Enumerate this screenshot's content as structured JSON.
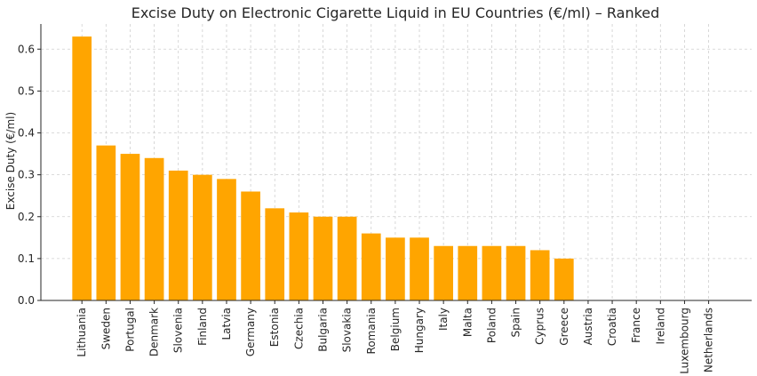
{
  "chart_data": {
    "type": "bar",
    "title": "Excise Duty on Electronic Cigarette Liquid in EU Countries (€/ml) – Ranked",
    "xlabel": "",
    "ylabel": "Excise Duty (€/ml)",
    "ylim": [
      0,
      0.66
    ],
    "yticks": [
      "0.0",
      "0.1",
      "0.2",
      "0.3",
      "0.4",
      "0.5",
      "0.6"
    ],
    "grid": true,
    "bar_color": "#FFA500",
    "categories": [
      "Lithuania",
      "Sweden",
      "Portugal",
      "Denmark",
      "Slovenia",
      "Finland",
      "Latvia",
      "Germany",
      "Estonia",
      "Czechia",
      "Bulgaria",
      "Slovakia",
      "Romania",
      "Belgium",
      "Hungary",
      "Italy",
      "Malta",
      "Poland",
      "Spain",
      "Cyprus",
      "Greece",
      "Austria",
      "Croatia",
      "France",
      "Ireland",
      "Luxembourg",
      "Netherlands"
    ],
    "values": [
      0.63,
      0.37,
      0.35,
      0.34,
      0.31,
      0.3,
      0.29,
      0.26,
      0.22,
      0.21,
      0.2,
      0.2,
      0.16,
      0.15,
      0.15,
      0.13,
      0.13,
      0.13,
      0.13,
      0.12,
      0.1,
      0,
      0,
      0,
      0,
      0,
      0
    ]
  }
}
